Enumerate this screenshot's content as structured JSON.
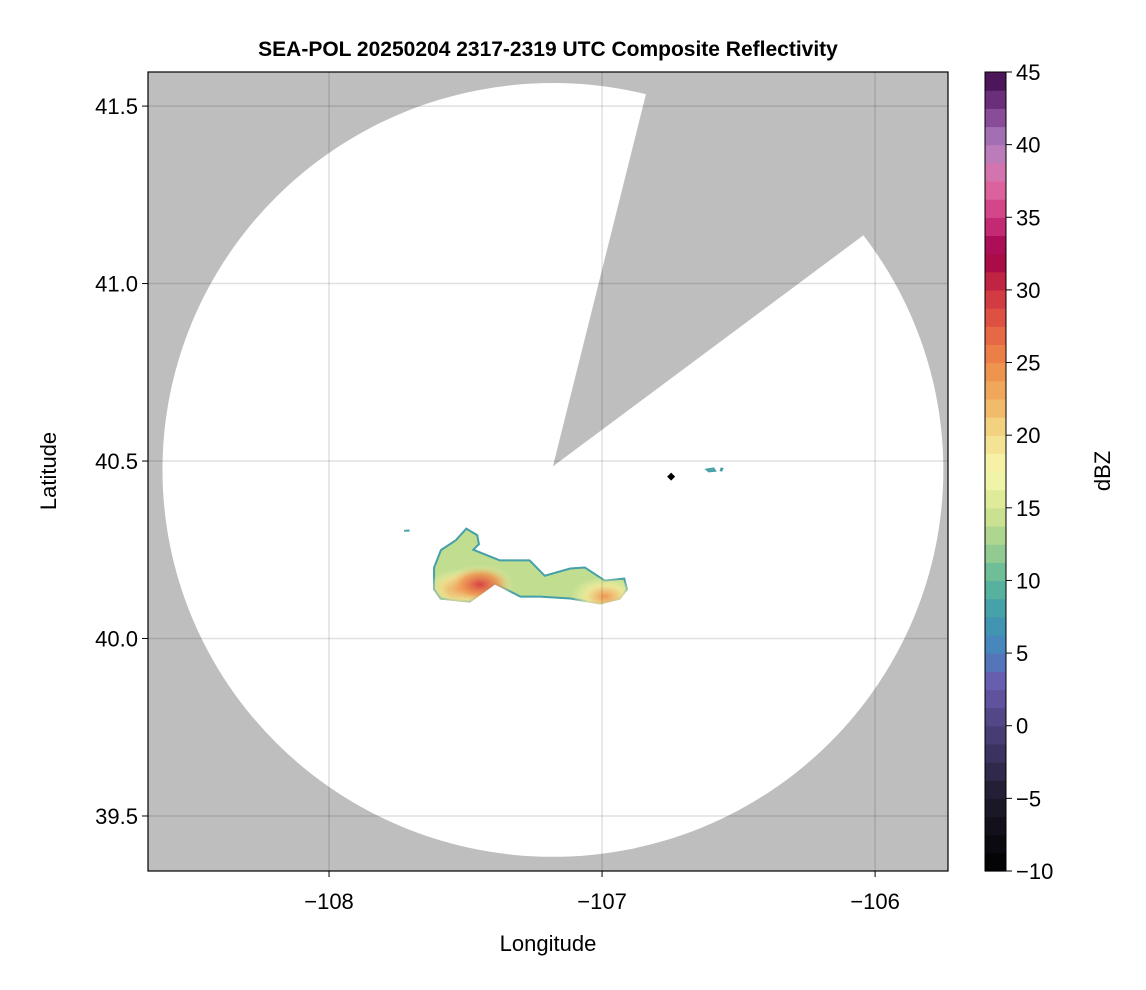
{
  "chart_data": {
    "type": "heatmap",
    "title": "SEA-POL 20250204 2317-2319 UTC Composite Reflectivity",
    "xlabel": "Longitude",
    "ylabel": "Latitude",
    "xlim": [
      -108.663,
      -105.733
    ],
    "ylim": [
      39.345,
      41.596
    ],
    "xticks": [
      -108,
      -107,
      -106
    ],
    "xtick_labels": [
      "−108",
      "−107",
      "−106"
    ],
    "yticks": [
      39.5,
      40.0,
      40.5,
      41.0,
      41.5
    ],
    "ytick_labels": [
      "39.5",
      "40.0",
      "40.5",
      "41.0",
      "41.5"
    ],
    "grid": true,
    "background_color": "#bebebe",
    "radar": {
      "center": {
        "lon": -107.18,
        "lat": 40.475
      },
      "range_deg_lon": 1.43,
      "range_deg_lat": 1.09,
      "blocked_sector": [
        [
          -107.18,
          40.485
        ],
        [
          -106.842,
          41.525
        ],
        [
          -106.062,
          41.125
        ]
      ]
    },
    "marker": {
      "lon": -106.747,
      "lat": 40.456,
      "shape": "diamond",
      "color": "#000000"
    },
    "echoes": [
      {
        "outline": [
          [
            -107.619,
            40.2
          ],
          [
            -107.593,
            40.251
          ],
          [
            -107.538,
            40.279
          ],
          [
            -107.498,
            40.313
          ],
          [
            -107.454,
            40.293
          ],
          [
            -107.447,
            40.265
          ],
          [
            -107.465,
            40.251
          ],
          [
            -107.374,
            40.223
          ],
          [
            -107.264,
            40.223
          ],
          [
            -107.209,
            40.18
          ],
          [
            -107.117,
            40.2
          ],
          [
            -107.062,
            40.203
          ],
          [
            -106.989,
            40.166
          ],
          [
            -106.916,
            40.172
          ],
          [
            -106.905,
            40.138
          ],
          [
            -106.934,
            40.11
          ],
          [
            -107.007,
            40.096
          ],
          [
            -107.117,
            40.11
          ],
          [
            -107.227,
            40.115
          ],
          [
            -107.3,
            40.115
          ],
          [
            -107.392,
            40.152
          ],
          [
            -107.484,
            40.101
          ],
          [
            -107.593,
            40.11
          ],
          [
            -107.619,
            40.138
          ]
        ],
        "cores": [
          {
            "lon": -107.52,
            "lat": 40.14,
            "dbz": 25
          },
          {
            "lon": -107.447,
            "lat": 40.152,
            "dbz": 29
          },
          {
            "lon": -106.989,
            "lat": 40.118,
            "dbz": 24
          }
        ]
      },
      {
        "outline": [
          [
            -106.625,
            40.478
          ],
          [
            -106.59,
            40.482
          ],
          [
            -106.58,
            40.47
          ],
          [
            -106.61,
            40.468
          ]
        ],
        "cores": []
      },
      {
        "outline": [
          [
            -106.565,
            40.482
          ],
          [
            -106.555,
            40.48
          ],
          [
            -106.56,
            40.47
          ],
          [
            -106.57,
            40.472
          ]
        ],
        "cores": []
      },
      {
        "outline": [
          [
            -107.725,
            40.306
          ],
          [
            -107.705,
            40.307
          ],
          [
            -107.705,
            40.301
          ],
          [
            -107.725,
            40.301
          ]
        ],
        "cores": []
      }
    ],
    "colorbar": {
      "label": "dBZ",
      "range": [
        -10,
        45
      ],
      "ticks": [
        -10,
        -5,
        0,
        5,
        10,
        15,
        20,
        25,
        30,
        35,
        40,
        45
      ],
      "tick_labels": [
        "−10",
        "−5",
        "0",
        "5",
        "10",
        "15",
        "20",
        "25",
        "30",
        "35",
        "40",
        "45"
      ],
      "bins": 44,
      "colormap_stops": [
        [
          -10,
          "#000000"
        ],
        [
          -5,
          "#1e1a2c"
        ],
        [
          0,
          "#4e417e"
        ],
        [
          3,
          "#6a5cae"
        ],
        [
          5,
          "#4a80c0"
        ],
        [
          7.5,
          "#3e9aad"
        ],
        [
          10,
          "#5fb89a"
        ],
        [
          12.5,
          "#a2d18f"
        ],
        [
          15,
          "#d6e690"
        ],
        [
          17.5,
          "#f8f8b0"
        ],
        [
          20,
          "#f2dc8a"
        ],
        [
          22.5,
          "#f0b060"
        ],
        [
          25,
          "#ee8a48"
        ],
        [
          27.5,
          "#e45c42"
        ],
        [
          30,
          "#cc3040"
        ],
        [
          32.5,
          "#a0004a"
        ],
        [
          35,
          "#d03880"
        ],
        [
          37.5,
          "#e070a8"
        ],
        [
          40,
          "#b080c0"
        ],
        [
          42.5,
          "#7a3a8a"
        ],
        [
          45,
          "#3d0a4a"
        ]
      ]
    }
  }
}
